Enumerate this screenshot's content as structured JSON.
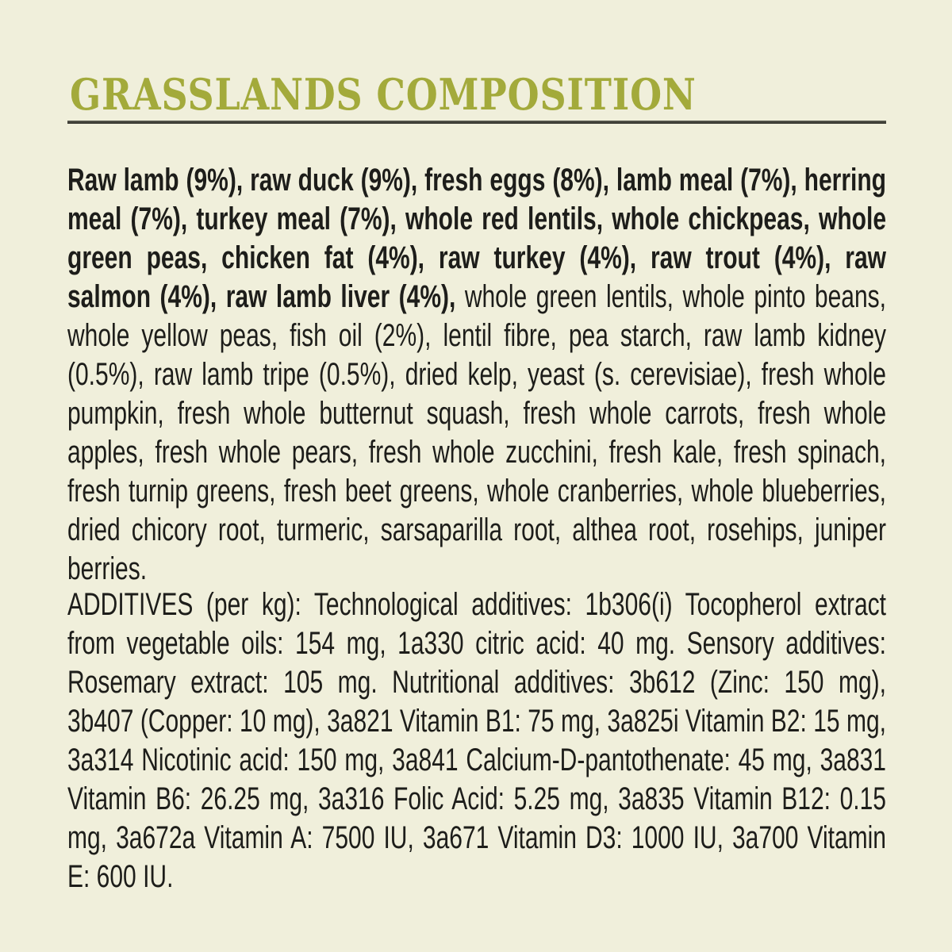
{
  "label": {
    "title": "GRASSLANDS COMPOSITION",
    "composition_bold": "Raw lamb (9%), raw duck (9%), fresh eggs (8%), lamb meal (7%), herring meal (7%), turkey meal (7%), whole red lentils, whole chickpeas, whole green peas, chicken fat (4%), raw turkey (4%), raw trout (4%), raw salmon (4%), raw lamb liver (4%),",
    "composition_regular": " whole green lentils, whole pinto beans, whole yellow peas, fish oil (2%), lentil fibre, pea starch, raw lamb kidney (0.5%), raw lamb tripe (0.5%), dried kelp, yeast (s. cerevisiae), fresh whole pumpkin, fresh whole butternut squash, fresh whole carrots, fresh whole apples, fresh whole pears, fresh whole zucchini, fresh kale, fresh spinach, fresh turnip greens, fresh beet greens, whole cranberries, whole blueberries, dried chicory root, turmeric, sarsaparilla root, althea root, rosehips, juniper berries.",
    "additives": "ADDITIVES (per kg): Technological additives: 1b306(i) Tocopherol extract from vegetable oils: 154 mg, 1a330 citric acid: 40 mg. Sensory additives: Rosemary extract: 105 mg. Nutritional additives: 3b612 (Zinc: 150 mg), 3b407 (Copper: 10 mg), 3a821 Vitamin B1: 75 mg, 3a825i Vitamin B2: 15 mg, 3a314 Nicotinic acid: 150 mg, 3a841 Calcium-D-pantothenate: 45 mg, 3a831 Vitamin B6: 26.25 mg, 3a316 Folic Acid: 5.25 mg, 3a835 Vitamin B12: 0.15 mg, 3a672a Vitamin A: 7500 IU, 3a671 Vitamin D3: 1000 IU, 3a700 Vitamin E: 600 IU.",
    "colors": {
      "background": "#f0efdb",
      "title": "#a3aa3b",
      "divider": "#3a3a32",
      "body_text": "#1d1d1a"
    }
  }
}
